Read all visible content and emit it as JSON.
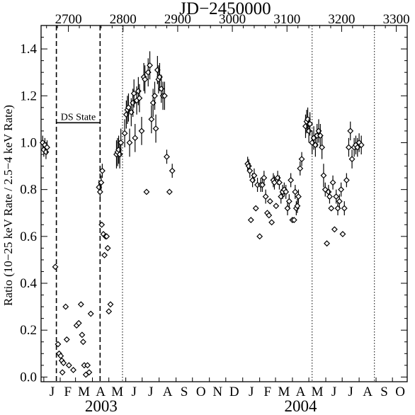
{
  "chart_data": {
    "type": "scatter",
    "title": "JD−2450000",
    "ylabel": "Ratio (10−25 keV Rate / 2.5−4 keV Rate)",
    "xlim": [
      2650,
      3320
    ],
    "ylim": [
      -0.02,
      1.5
    ],
    "top_ticks": [
      2700,
      2800,
      2900,
      3000,
      3100,
      3200,
      3300
    ],
    "y_ticks": [
      "0.0",
      "0.2",
      "0.4",
      "0.6",
      "0.8",
      "1.0",
      "1.2",
      "1.4"
    ],
    "months": [
      {
        "label": "J",
        "jd": 2655
      },
      {
        "label": "F",
        "jd": 2685
      },
      {
        "label": "M",
        "jd": 2713
      },
      {
        "label": "A",
        "jd": 2744
      },
      {
        "label": "M",
        "jd": 2774
      },
      {
        "label": "J",
        "jd": 2805
      },
      {
        "label": "J",
        "jd": 2835
      },
      {
        "label": "A",
        "jd": 2866
      },
      {
        "label": "S",
        "jd": 2897
      },
      {
        "label": "O",
        "jd": 2927
      },
      {
        "label": "N",
        "jd": 2958
      },
      {
        "label": "D",
        "jd": 2988
      },
      {
        "label": "J",
        "jd": 3019
      },
      {
        "label": "F",
        "jd": 3050
      },
      {
        "label": "M",
        "jd": 3079
      },
      {
        "label": "A",
        "jd": 3110
      },
      {
        "label": "M",
        "jd": 3140
      },
      {
        "label": "J",
        "jd": 3171
      },
      {
        "label": "J",
        "jd": 3201
      },
      {
        "label": "A",
        "jd": 3232
      },
      {
        "label": "S",
        "jd": 3263
      },
      {
        "label": "O",
        "jd": 3293
      }
    ],
    "years": [
      {
        "label": "2003",
        "jd": 2760
      },
      {
        "label": "2004",
        "jd": 3125
      }
    ],
    "dashed_lines": [
      2678,
      2758
    ],
    "dotted_lines": [
      2799,
      3146,
      3260
    ],
    "annotation": {
      "label": "DS State",
      "x_from": 2678,
      "x_to": 2758,
      "y": 1.085
    },
    "series": [
      {
        "points": [
          [
            2653,
            1.0,
            0.03
          ],
          [
            2655,
            0.97,
            0.03
          ],
          [
            2657,
            0.99,
            0.03
          ],
          [
            2659,
            0.96,
            0.03
          ],
          [
            2661,
            0.98,
            0.03
          ],
          [
            2676,
            0.47,
            0.0
          ],
          [
            2681,
            0.14,
            0.0
          ],
          [
            2683,
            0.1,
            0.0
          ],
          [
            2686,
            0.09,
            0.0
          ],
          [
            2688,
            0.07,
            0.0
          ],
          [
            2691,
            0.06,
            0.0
          ],
          [
            2689,
            0.02,
            0.0
          ],
          [
            2695,
            0.3,
            0.0
          ],
          [
            2697,
            0.16,
            0.0
          ],
          [
            2701,
            0.05,
            0.0
          ],
          [
            2709,
            0.03,
            0.0
          ],
          [
            2715,
            0.22,
            0.0
          ],
          [
            2719,
            0.23,
            0.0
          ],
          [
            2723,
            0.31,
            0.0
          ],
          [
            2725,
            0.18,
            0.0
          ],
          [
            2727,
            0.15,
            0.0
          ],
          [
            2729,
            0.05,
            0.0
          ],
          [
            2732,
            0.01,
            0.0
          ],
          [
            2735,
            0.05,
            0.0
          ],
          [
            2738,
            0.02,
            0.0
          ],
          [
            2741,
            0.27,
            0.0
          ],
          [
            2756,
            0.81,
            0.03
          ],
          [
            2758,
            0.79,
            0.03
          ],
          [
            2760,
            0.83,
            0.03
          ],
          [
            2762,
            0.88,
            0.03
          ],
          [
            2761,
            0.65,
            0.0
          ],
          [
            2764,
            0.61,
            0.0
          ],
          [
            2766,
            0.52,
            0.0
          ],
          [
            2768,
            0.6,
            0.0
          ],
          [
            2770,
            0.6,
            0.0
          ],
          [
            2772,
            0.55,
            0.0
          ],
          [
            2774,
            0.28,
            0.0
          ],
          [
            2777,
            0.31,
            0.0
          ],
          [
            2788,
            0.95,
            0.06
          ],
          [
            2790,
            0.96,
            0.06
          ],
          [
            2792,
            0.97,
            0.06
          ],
          [
            2794,
            0.95,
            0.06
          ],
          [
            2796,
            1.0,
            0.06
          ],
          [
            2803,
            1.04,
            0.06
          ],
          [
            2806,
            1.12,
            0.06
          ],
          [
            2808,
            1.14,
            0.06
          ],
          [
            2810,
            1.15,
            0.06
          ],
          [
            2812,
            1.0,
            0.06
          ],
          [
            2815,
            1.13,
            0.06
          ],
          [
            2818,
            1.17,
            0.06
          ],
          [
            2820,
            1.21,
            0.06
          ],
          [
            2822,
            1.02,
            0.06
          ],
          [
            2825,
            1.18,
            0.06
          ],
          [
            2828,
            1.22,
            0.06
          ],
          [
            2830,
            1.19,
            0.06
          ],
          [
            2834,
            1.05,
            0.06
          ],
          [
            2838,
            1.28,
            0.06
          ],
          [
            2840,
            1.27,
            0.06
          ],
          [
            2843,
            0.79,
            0.0
          ],
          [
            2846,
            1.3,
            0.06
          ],
          [
            2849,
            1.33,
            0.06
          ],
          [
            2852,
            1.1,
            0.06
          ],
          [
            2855,
            1.17,
            0.06
          ],
          [
            2858,
            1.2,
            0.06
          ],
          [
            2860,
            1.06,
            0.06
          ],
          [
            2863,
            1.31,
            0.06
          ],
          [
            2865,
            1.27,
            0.06
          ],
          [
            2867,
            1.28,
            0.06
          ],
          [
            2870,
            1.23,
            0.06
          ],
          [
            2873,
            1.2,
            0.06
          ],
          [
            2876,
            1.2,
            0.06
          ],
          [
            2880,
            0.94,
            0.03
          ],
          [
            2885,
            0.79,
            0.0
          ],
          [
            2890,
            0.88,
            0.03
          ],
          [
            3028,
            0.91,
            0.03
          ],
          [
            3030,
            0.9,
            0.03
          ],
          [
            3032,
            0.88,
            0.03
          ],
          [
            3034,
            0.67,
            0.0
          ],
          [
            3037,
            0.84,
            0.03
          ],
          [
            3040,
            0.86,
            0.03
          ],
          [
            3043,
            0.72,
            0.0
          ],
          [
            3046,
            0.82,
            0.03
          ],
          [
            3050,
            0.6,
            0.0
          ],
          [
            3052,
            0.82,
            0.03
          ],
          [
            3055,
            0.82,
            0.03
          ],
          [
            3058,
            0.85,
            0.03
          ],
          [
            3061,
            0.77,
            0.03
          ],
          [
            3064,
            0.7,
            0.0
          ],
          [
            3067,
            0.69,
            0.0
          ],
          [
            3069,
            0.75,
            0.0
          ],
          [
            3072,
            0.66,
            0.0
          ],
          [
            3075,
            0.84,
            0.03
          ],
          [
            3077,
            0.83,
            0.03
          ],
          [
            3080,
            0.73,
            0.0
          ],
          [
            3083,
            0.85,
            0.03
          ],
          [
            3086,
            0.83,
            0.03
          ],
          [
            3089,
            0.77,
            0.03
          ],
          [
            3092,
            0.79,
            0.03
          ],
          [
            3095,
            0.8,
            0.03
          ],
          [
            3098,
            0.79,
            0.03
          ],
          [
            3101,
            0.72,
            0.03
          ],
          [
            3104,
            0.75,
            0.03
          ],
          [
            3107,
            0.84,
            0.03
          ],
          [
            3110,
            0.67,
            0.0
          ],
          [
            3113,
            0.67,
            0.0
          ],
          [
            3115,
            0.79,
            0.03
          ],
          [
            3117,
            0.72,
            0.03
          ],
          [
            3119,
            0.73,
            0.03
          ],
          [
            3121,
            0.77,
            0.03
          ],
          [
            3124,
            0.89,
            0.03
          ],
          [
            3127,
            0.93,
            0.03
          ],
          [
            3134,
            1.07,
            0.05
          ],
          [
            3136,
            1.09,
            0.05
          ],
          [
            3138,
            1.1,
            0.05
          ],
          [
            3140,
            1.05,
            0.05
          ],
          [
            3142,
            1.08,
            0.05
          ],
          [
            3146,
            1.0,
            0.05
          ],
          [
            3149,
            1.02,
            0.05
          ],
          [
            3152,
            0.99,
            0.05
          ],
          [
            3155,
            1.03,
            0.05
          ],
          [
            3158,
            1.05,
            0.05
          ],
          [
            3161,
            1.03,
            0.05
          ],
          [
            3164,
            0.98,
            0.05
          ],
          [
            3167,
            0.86,
            0.05
          ],
          [
            3170,
            0.8,
            0.03
          ],
          [
            3173,
            0.57,
            0.0
          ],
          [
            3176,
            0.79,
            0.03
          ],
          [
            3178,
            0.77,
            0.03
          ],
          [
            3181,
            0.72,
            0.0
          ],
          [
            3184,
            0.83,
            0.03
          ],
          [
            3187,
            0.63,
            0.0
          ],
          [
            3190,
            0.77,
            0.03
          ],
          [
            3193,
            0.72,
            0.03
          ],
          [
            3196,
            0.75,
            0.03
          ],
          [
            3199,
            0.8,
            0.03
          ],
          [
            3202,
            0.61,
            0.0
          ],
          [
            3205,
            0.72,
            0.03
          ],
          [
            3209,
            0.84,
            0.03
          ],
          [
            3213,
            0.98,
            0.04
          ],
          [
            3216,
            1.05,
            0.04
          ],
          [
            3219,
            0.93,
            0.04
          ],
          [
            3223,
            0.98,
            0.04
          ],
          [
            3226,
            0.99,
            0.04
          ],
          [
            3229,
            0.98,
            0.04
          ],
          [
            3232,
            1.0,
            0.04
          ],
          [
            3236,
            0.99,
            0.04
          ]
        ]
      }
    ]
  }
}
